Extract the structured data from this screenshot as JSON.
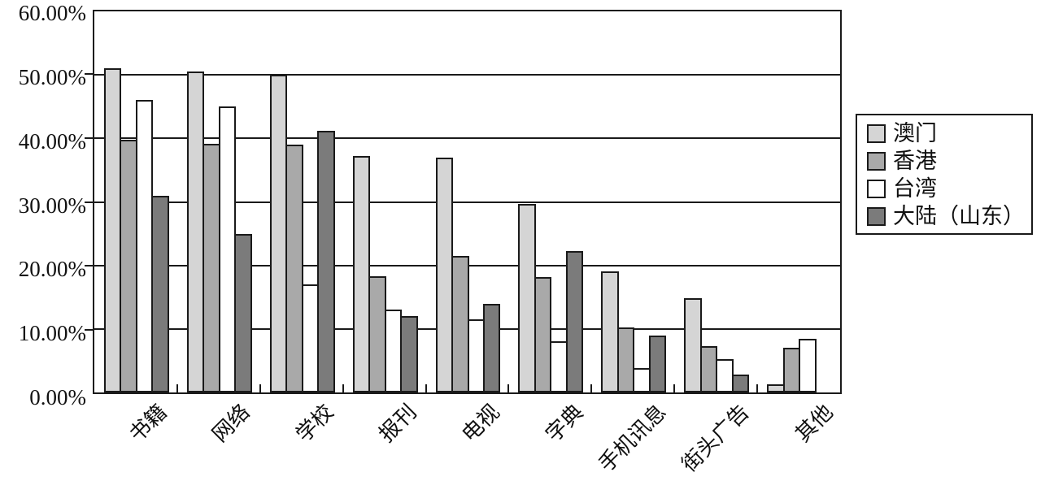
{
  "chart_data": {
    "type": "bar",
    "title": "",
    "xlabel": "",
    "ylabel": "",
    "categories": [
      "书籍",
      "网络",
      "学校",
      "报刊",
      "电视",
      "字典",
      "手机讯息",
      "街头广告",
      "其他"
    ],
    "series": [
      {
        "name": "澳门",
        "color": "#d5d5d5",
        "values": [
          51.0,
          50.5,
          50.0,
          37.2,
          37.0,
          29.7,
          19.0,
          14.8,
          1.3
        ]
      },
      {
        "name": "香港",
        "color": "#a9a9a9",
        "values": [
          39.8,
          39.2,
          39.0,
          18.3,
          21.5,
          18.2,
          10.3,
          7.3,
          7.0
        ]
      },
      {
        "name": "台湾",
        "color": "#ffffff",
        "values": [
          46.0,
          45.0,
          17.0,
          13.0,
          11.5,
          8.0,
          3.8,
          5.2,
          8.5
        ]
      },
      {
        "name": "大陆（山东）",
        "color": "#7b7b7b",
        "values": [
          31.0,
          25.0,
          41.2,
          12.0,
          14.0,
          22.3,
          9.0,
          2.8,
          0.0
        ]
      }
    ],
    "ylim": [
      0,
      60
    ],
    "ytick_step": 10,
    "ytick_labels": [
      "0.00%",
      "10.00%",
      "20.00%",
      "30.00%",
      "40.00%",
      "50.00%",
      "60.00%"
    ],
    "grid": true,
    "legend_position": "right",
    "bar_border_color": "#1a1a1a",
    "gridline_color": "#1a1a1a"
  }
}
